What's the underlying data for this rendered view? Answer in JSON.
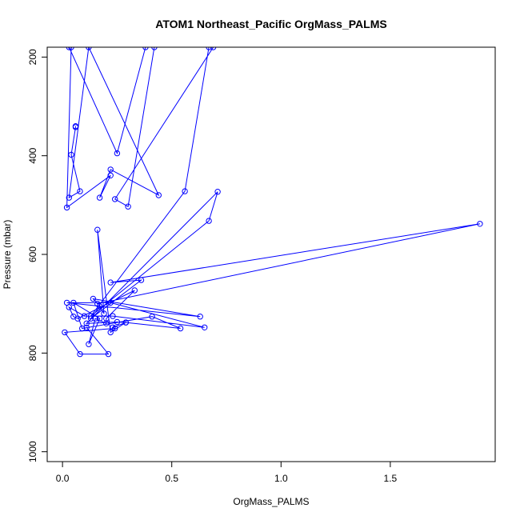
{
  "chart_data": {
    "type": "line",
    "title": "ATOM1 Northeast_Pacific OrgMass_PALMS",
    "xlabel": "OrgMass_PALMS",
    "ylabel": "Pressure (mbar)",
    "xlim": [
      -0.07,
      1.98
    ],
    "ylim": [
      1020,
      180
    ],
    "y_reversed": true,
    "grid": false,
    "color": "#0000ff",
    "x_ticks": [
      0.0,
      0.5,
      1.0,
      1.5
    ],
    "x_tick_labels": [
      "0.0",
      "0.5",
      "1.0",
      "1.5"
    ],
    "y_ticks": [
      200,
      400,
      600,
      800,
      1000
    ],
    "y_tick_labels": [
      "200",
      "400",
      "600",
      "800",
      "1000"
    ],
    "series": [
      {
        "x": [
          0.06,
          0.06,
          0.04,
          0.08,
          0.03,
          0.12,
          0.44,
          0.22,
          0.17,
          0.22,
          0.02,
          0.04,
          0.03,
          0.25,
          0.38,
          0.42,
          0.3,
          0.24,
          0.69,
          0.67,
          0.56,
          0.13,
          0.67,
          0.71,
          0.11,
          0.25,
          0.29,
          0.22,
          0.16,
          0.19,
          0.17,
          0.13,
          0.36,
          0.22,
          1.91,
          0.16,
          0.14,
          0.63,
          0.02,
          0.22,
          0.65,
          0.23,
          0.1,
          0.03,
          0.05,
          0.07,
          0.33,
          0.2,
          0.2,
          0.15,
          0.12,
          0.17,
          0.05,
          0.09,
          0.41,
          0.54,
          0.29,
          0.23,
          0.24,
          0.01,
          0.08,
          0.21,
          0.11
        ],
        "y": [
          340,
          342,
          398,
          472,
          485,
          180,
          480,
          428,
          485,
          440,
          505,
          180,
          180,
          395,
          180,
          180,
          503,
          488,
          180,
          180,
          472,
          725,
          532,
          473,
          740,
          737,
          738,
          758,
          550,
          720,
          705,
          730,
          652,
          657,
          538,
          700,
          690,
          726,
          698,
          698,
          748,
          725,
          725,
          707,
          726,
          730,
          673,
          730,
          740,
          730,
          782,
          730,
          698,
          750,
          726,
          750,
          738,
          748,
          750,
          758,
          802,
          802,
          748
        ]
      }
    ]
  }
}
